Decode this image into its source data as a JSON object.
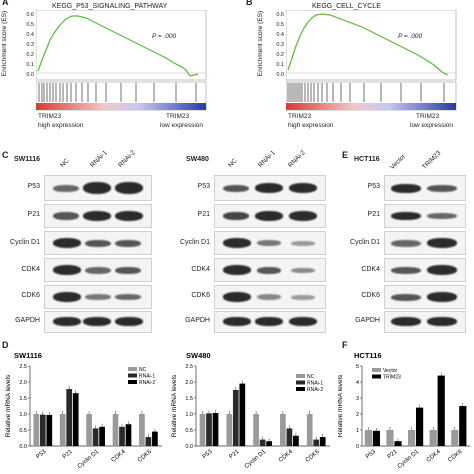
{
  "panelA": {
    "letter": "A",
    "title": "KEGG_P53_SIGNALING_PATHWAY",
    "pvalue": "P = .000",
    "ylabel": "Enrichment score (ES)",
    "yticks": [
      "0.6",
      "0.5",
      "0.4",
      "0.3",
      "0.2",
      "0.1",
      "0.0"
    ],
    "left_label": "TRIM23",
    "left_sub": "high expression",
    "right_label": "TRIM23",
    "right_sub": "low expression"
  },
  "panelB": {
    "letter": "B",
    "title": "KEGG_CELL_CYCLE",
    "pvalue": "P = .000",
    "ylabel": "Enrichment score (ES)",
    "yticks": [
      "0.6",
      "0.5",
      "0.4",
      "0.3",
      "0.2",
      "0.1",
      "0.0"
    ],
    "left_label": "TRIM23",
    "left_sub": "high expression",
    "right_label": "TRIM23",
    "right_sub": "low expression"
  },
  "panelC": {
    "letter": "C",
    "blot1": {
      "cell": "SW1116",
      "lanes": [
        "NC",
        "RNAi-1",
        "RNAi-2"
      ]
    },
    "blot2": {
      "cell": "SW480",
      "lanes": [
        "NC",
        "RNAi-1",
        "RNAi-2"
      ]
    },
    "proteins": [
      "P53",
      "P21",
      "Cyclin D1",
      "CDK4",
      "CDK6",
      "GAPDH"
    ]
  },
  "panelE": {
    "letter": "E",
    "cell": "HCT116",
    "lanes": [
      "Vector",
      "TRIM23"
    ],
    "proteins": [
      "P53",
      "P21",
      "Cyclin D1",
      "CDK4",
      "CDK6",
      "GAPDH"
    ]
  },
  "panelD": {
    "letter": "D"
  },
  "panelF": {
    "letter": "F"
  },
  "chart_data": [
    {
      "type": "bar",
      "title": "SW1116",
      "ylabel": "Relative mRNA levels",
      "ylim": [
        0,
        2.5
      ],
      "yticks": [
        "2.5",
        "2.0",
        "1.5",
        "1.0",
        "0.5",
        "0.0"
      ],
      "categories": [
        "P53",
        "P21",
        "Cyclin D1",
        "CDK4",
        "CDK6"
      ],
      "legend_position": "top-right",
      "series": [
        {
          "name": "NC",
          "color": "#9a9a9a",
          "values": [
            1.0,
            1.0,
            1.0,
            1.0,
            1.0
          ]
        },
        {
          "name": "RNAi-1",
          "color": "#2a2a2a",
          "values": [
            0.98,
            1.78,
            0.55,
            0.6,
            0.28
          ]
        },
        {
          "name": "RNAi-2",
          "color": "#000000",
          "values": [
            0.97,
            1.65,
            0.6,
            0.68,
            0.45
          ]
        }
      ]
    },
    {
      "type": "bar",
      "title": "SW480",
      "ylabel": "Relative mRNA levels",
      "ylim": [
        0,
        2.5
      ],
      "yticks": [
        "2.5",
        "2.0",
        "1.5",
        "1.0",
        "0.5",
        "0.0"
      ],
      "categories": [
        "P53",
        "P21",
        "Cyclin D1",
        "CDK4",
        "CDK6"
      ],
      "legend_position": "top-right",
      "series": [
        {
          "name": "NC",
          "color": "#9a9a9a",
          "values": [
            1.0,
            1.0,
            1.0,
            1.0,
            1.0
          ]
        },
        {
          "name": "RNAi-1",
          "color": "#2a2a2a",
          "values": [
            1.02,
            1.75,
            0.2,
            0.55,
            0.2
          ]
        },
        {
          "name": "RNAi-2",
          "color": "#000000",
          "values": [
            1.03,
            1.95,
            0.15,
            0.32,
            0.28
          ]
        }
      ]
    },
    {
      "type": "bar",
      "title": "HCT116",
      "ylabel": "Relative mRNA levels",
      "ylim": [
        0,
        5
      ],
      "yticks": [
        "5",
        "4",
        "3",
        "2",
        "1",
        "0"
      ],
      "categories": [
        "P53",
        "P21",
        "Cyclin D1",
        "CDK4",
        "CDK6"
      ],
      "legend_position": "top-left",
      "series": [
        {
          "name": "Vector",
          "color": "#9a9a9a",
          "values": [
            1.0,
            1.0,
            1.0,
            1.0,
            1.0
          ]
        },
        {
          "name": "TRIM23",
          "color": "#000000",
          "values": [
            0.95,
            0.3,
            2.4,
            4.4,
            2.5
          ]
        }
      ]
    }
  ]
}
